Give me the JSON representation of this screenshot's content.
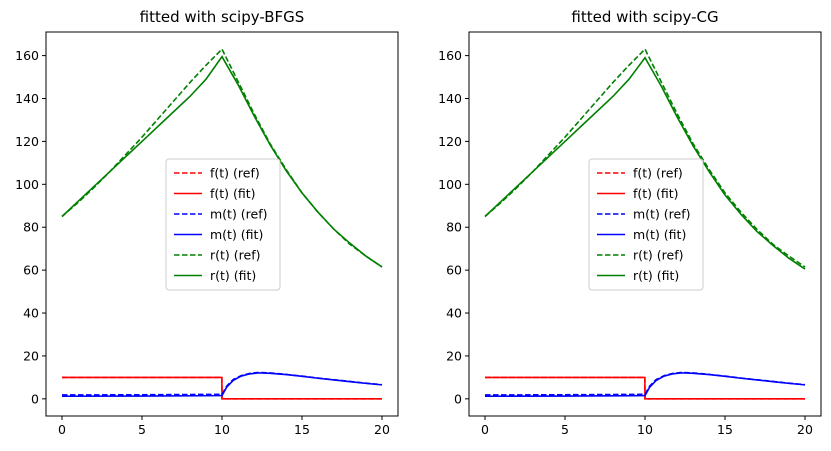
{
  "chart_data": [
    {
      "type": "line",
      "title": "fitted with scipy-BFGS",
      "xlabel": "",
      "ylabel": "",
      "xlim": [
        -1,
        21
      ],
      "ylim": [
        -8,
        171
      ],
      "xticks": [
        0,
        5,
        10,
        15,
        20
      ],
      "yticks": [
        0,
        20,
        40,
        60,
        80,
        100,
        120,
        140,
        160
      ],
      "grid": false,
      "legend_position": "center",
      "series": [
        {
          "name": "f(t) (ref)",
          "color": "#ff0000",
          "dash": true,
          "points": [
            [
              0,
              10
            ],
            [
              9.99,
              10
            ],
            [
              10,
              0
            ],
            [
              20,
              0
            ]
          ]
        },
        {
          "name": "f(t) (fit)",
          "color": "#ff0000",
          "dash": false,
          "points": [
            [
              0,
              10
            ],
            [
              9.99,
              10
            ],
            [
              10,
              0
            ],
            [
              20,
              0
            ]
          ]
        },
        {
          "name": "m(t) (ref)",
          "color": "#0000ff",
          "dash": true,
          "points": [
            [
              0,
              1.8
            ],
            [
              5,
              1.9
            ],
            [
              9.9,
              2.1
            ],
            [
              10,
              2.1
            ],
            [
              10.3,
              6
            ],
            [
              10.7,
              9
            ],
            [
              11.2,
              10.8
            ],
            [
              11.7,
              11.8
            ],
            [
              12.3,
              12.3
            ],
            [
              13,
              12.1
            ],
            [
              14,
              11.4
            ],
            [
              15,
              10.6
            ],
            [
              16,
              9.7
            ],
            [
              17,
              8.9
            ],
            [
              18,
              8.1
            ],
            [
              19,
              7.3
            ],
            [
              20,
              6.6
            ]
          ]
        },
        {
          "name": "m(t) (fit)",
          "color": "#0000ff",
          "dash": false,
          "points": [
            [
              0,
              1.2
            ],
            [
              5,
              1.3
            ],
            [
              9.9,
              1.5
            ],
            [
              10,
              1.5
            ],
            [
              10.3,
              5.5
            ],
            [
              10.7,
              8.6
            ],
            [
              11.2,
              10.6
            ],
            [
              11.7,
              11.6
            ],
            [
              12.3,
              12.1
            ],
            [
              13,
              11.9
            ],
            [
              14,
              11.3
            ],
            [
              15,
              10.5
            ],
            [
              16,
              9.6
            ],
            [
              17,
              8.8
            ],
            [
              18,
              8.0
            ],
            [
              19,
              7.2
            ],
            [
              20,
              6.5
            ]
          ]
        },
        {
          "name": "r(t) (ref)",
          "color": "#008000",
          "dash": true,
          "points": [
            [
              0,
              85
            ],
            [
              1,
              91.5
            ],
            [
              2,
              98.5
            ],
            [
              3,
              106
            ],
            [
              4,
              114
            ],
            [
              5,
              122
            ],
            [
              6,
              130.5
            ],
            [
              7,
              139
            ],
            [
              8,
              147.5
            ],
            [
              9,
              155.5
            ],
            [
              10,
              163
            ],
            [
              11,
              148
            ],
            [
              12,
              133
            ],
            [
              13,
              119
            ],
            [
              14,
              107
            ],
            [
              15,
              96
            ],
            [
              16,
              87
            ],
            [
              17,
              79
            ],
            [
              18,
              72
            ],
            [
              19,
              66.5
            ],
            [
              20,
              61.5
            ]
          ]
        },
        {
          "name": "r(t) (fit)",
          "color": "#008000",
          "dash": false,
          "points": [
            [
              0,
              85
            ],
            [
              1,
              92
            ],
            [
              2,
              99
            ],
            [
              3,
              106
            ],
            [
              4,
              113
            ],
            [
              5,
              120
            ],
            [
              6,
              127
            ],
            [
              7,
              134
            ],
            [
              8,
              141
            ],
            [
              9,
              149
            ],
            [
              10,
              159.5
            ],
            [
              11,
              146.5
            ],
            [
              12,
              132
            ],
            [
              13,
              118.5
            ],
            [
              14,
              106.5
            ],
            [
              15,
              96
            ],
            [
              16,
              87
            ],
            [
              17,
              79
            ],
            [
              18,
              72.5
            ],
            [
              19,
              66.5
            ],
            [
              20,
              61.5
            ]
          ]
        }
      ]
    },
    {
      "type": "line",
      "title": "fitted with scipy-CG",
      "xlabel": "",
      "ylabel": "",
      "xlim": [
        -1,
        21
      ],
      "ylim": [
        -8,
        171
      ],
      "xticks": [
        0,
        5,
        10,
        15,
        20
      ],
      "yticks": [
        0,
        20,
        40,
        60,
        80,
        100,
        120,
        140,
        160
      ],
      "grid": false,
      "legend_position": "center",
      "series": [
        {
          "name": "f(t) (ref)",
          "color": "#ff0000",
          "dash": true,
          "points": [
            [
              0,
              10
            ],
            [
              9.99,
              10
            ],
            [
              10,
              0
            ],
            [
              20,
              0
            ]
          ]
        },
        {
          "name": "f(t) (fit)",
          "color": "#ff0000",
          "dash": false,
          "points": [
            [
              0,
              10
            ],
            [
              9.99,
              10
            ],
            [
              10,
              0
            ],
            [
              20,
              0
            ]
          ]
        },
        {
          "name": "m(t) (ref)",
          "color": "#0000ff",
          "dash": true,
          "points": [
            [
              0,
              1.8
            ],
            [
              5,
              1.9
            ],
            [
              9.9,
              2.1
            ],
            [
              10,
              2.1
            ],
            [
              10.3,
              6
            ],
            [
              10.7,
              9
            ],
            [
              11.2,
              10.8
            ],
            [
              11.7,
              11.8
            ],
            [
              12.3,
              12.3
            ],
            [
              13,
              12.1
            ],
            [
              14,
              11.4
            ],
            [
              15,
              10.6
            ],
            [
              16,
              9.7
            ],
            [
              17,
              8.9
            ],
            [
              18,
              8.1
            ],
            [
              19,
              7.3
            ],
            [
              20,
              6.6
            ]
          ]
        },
        {
          "name": "m(t) (fit)",
          "color": "#0000ff",
          "dash": false,
          "points": [
            [
              0,
              1.2
            ],
            [
              5,
              1.3
            ],
            [
              9.9,
              1.5
            ],
            [
              10,
              1.5
            ],
            [
              10.3,
              5.5
            ],
            [
              10.7,
              8.6
            ],
            [
              11.2,
              10.6
            ],
            [
              11.7,
              11.6
            ],
            [
              12.3,
              12.1
            ],
            [
              13,
              11.9
            ],
            [
              14,
              11.3
            ],
            [
              15,
              10.5
            ],
            [
              16,
              9.6
            ],
            [
              17,
              8.8
            ],
            [
              18,
              8.0
            ],
            [
              19,
              7.2
            ],
            [
              20,
              6.5
            ]
          ]
        },
        {
          "name": "r(t) (ref)",
          "color": "#008000",
          "dash": true,
          "points": [
            [
              0,
              85
            ],
            [
              1,
              91.5
            ],
            [
              2,
              98.5
            ],
            [
              3,
              106
            ],
            [
              4,
              114
            ],
            [
              5,
              122
            ],
            [
              6,
              130.5
            ],
            [
              7,
              139
            ],
            [
              8,
              147.5
            ],
            [
              9,
              155.5
            ],
            [
              10,
              163
            ],
            [
              11,
              148
            ],
            [
              12,
              133
            ],
            [
              13,
              119
            ],
            [
              14,
              107
            ],
            [
              15,
              96
            ],
            [
              16,
              87
            ],
            [
              17,
              79
            ],
            [
              18,
              72
            ],
            [
              19,
              66.5
            ],
            [
              20,
              61.5
            ]
          ]
        },
        {
          "name": "r(t) (fit)",
          "color": "#008000",
          "dash": false,
          "points": [
            [
              0,
              85
            ],
            [
              1,
              92
            ],
            [
              2,
              99
            ],
            [
              3,
              106
            ],
            [
              4,
              113
            ],
            [
              5,
              120
            ],
            [
              6,
              127
            ],
            [
              7,
              134
            ],
            [
              8,
              141
            ],
            [
              9,
              149
            ],
            [
              10,
              159
            ],
            [
              11,
              146
            ],
            [
              12,
              131.5
            ],
            [
              13,
              118
            ],
            [
              14,
              106
            ],
            [
              15,
              95
            ],
            [
              16,
              86
            ],
            [
              17,
              78
            ],
            [
              18,
              71.5
            ],
            [
              19,
              65.5
            ],
            [
              20,
              60.5
            ]
          ]
        }
      ]
    }
  ]
}
